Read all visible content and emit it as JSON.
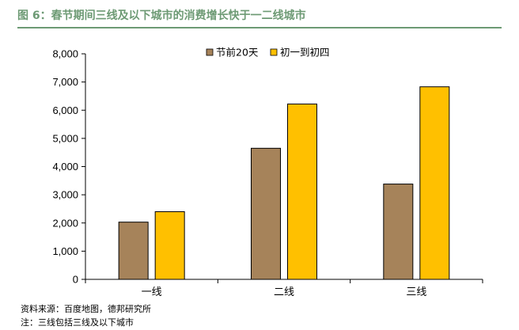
{
  "header": {
    "title": "图 6：春节期间三线及以下城市的消费增长快于一二线城市"
  },
  "footer": {
    "source": "资料来源：百度地图，德邦研究所",
    "note": "注：三线包括三线及以下城市"
  },
  "colors": {
    "title": "#6d9a74",
    "series1": "#a6835a",
    "series2": "#ffc000",
    "axis": "#000000"
  },
  "chart_data": {
    "type": "bar",
    "categories": [
      "一线",
      "二线",
      "三线"
    ],
    "series": [
      {
        "name": "节前20天",
        "values": [
          2030,
          4650,
          3380
        ],
        "color": "#a6835a"
      },
      {
        "name": "初一到初四",
        "values": [
          2400,
          6220,
          6830
        ],
        "color": "#ffc000"
      }
    ],
    "yticks": [
      "0",
      "1,000",
      "2,000",
      "3,000",
      "4,000",
      "5,000",
      "6,000",
      "7,000",
      "8,000"
    ],
    "ylim": [
      0,
      8000
    ],
    "grid": false,
    "legend_position": "top-center"
  }
}
